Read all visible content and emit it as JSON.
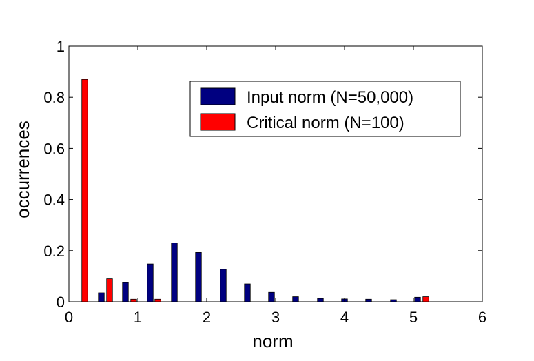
{
  "chart_data": {
    "type": "bar",
    "title": "",
    "xlabel": "norm",
    "ylabel": "occurrences",
    "xlim": [
      0,
      6
    ],
    "ylim": [
      0,
      1
    ],
    "xticks": [
      "0",
      "1",
      "2",
      "3",
      "4",
      "5",
      "6"
    ],
    "yticks": [
      "0",
      "0.2",
      "0.4",
      "0.6",
      "0.8",
      "1"
    ],
    "legend_position": "top-right",
    "grid": false,
    "series": [
      {
        "name": "Input norm (N=50,000)",
        "color": "#000080",
        "x": [
          0.47,
          0.82,
          1.18,
          1.53,
          1.88,
          2.24,
          2.59,
          2.94,
          3.29,
          3.65,
          4.0,
          4.35,
          4.71,
          5.06
        ],
        "values": [
          0.035,
          0.075,
          0.148,
          0.23,
          0.193,
          0.127,
          0.07,
          0.037,
          0.02,
          0.013,
          0.011,
          0.01,
          0.008,
          0.018
        ]
      },
      {
        "name": "Critical norm (N=100)",
        "color": "#ff0000",
        "x": [
          0.23,
          0.59,
          0.94,
          1.29,
          5.18
        ],
        "values": [
          0.87,
          0.09,
          0.01,
          0.01,
          0.02
        ]
      }
    ]
  }
}
